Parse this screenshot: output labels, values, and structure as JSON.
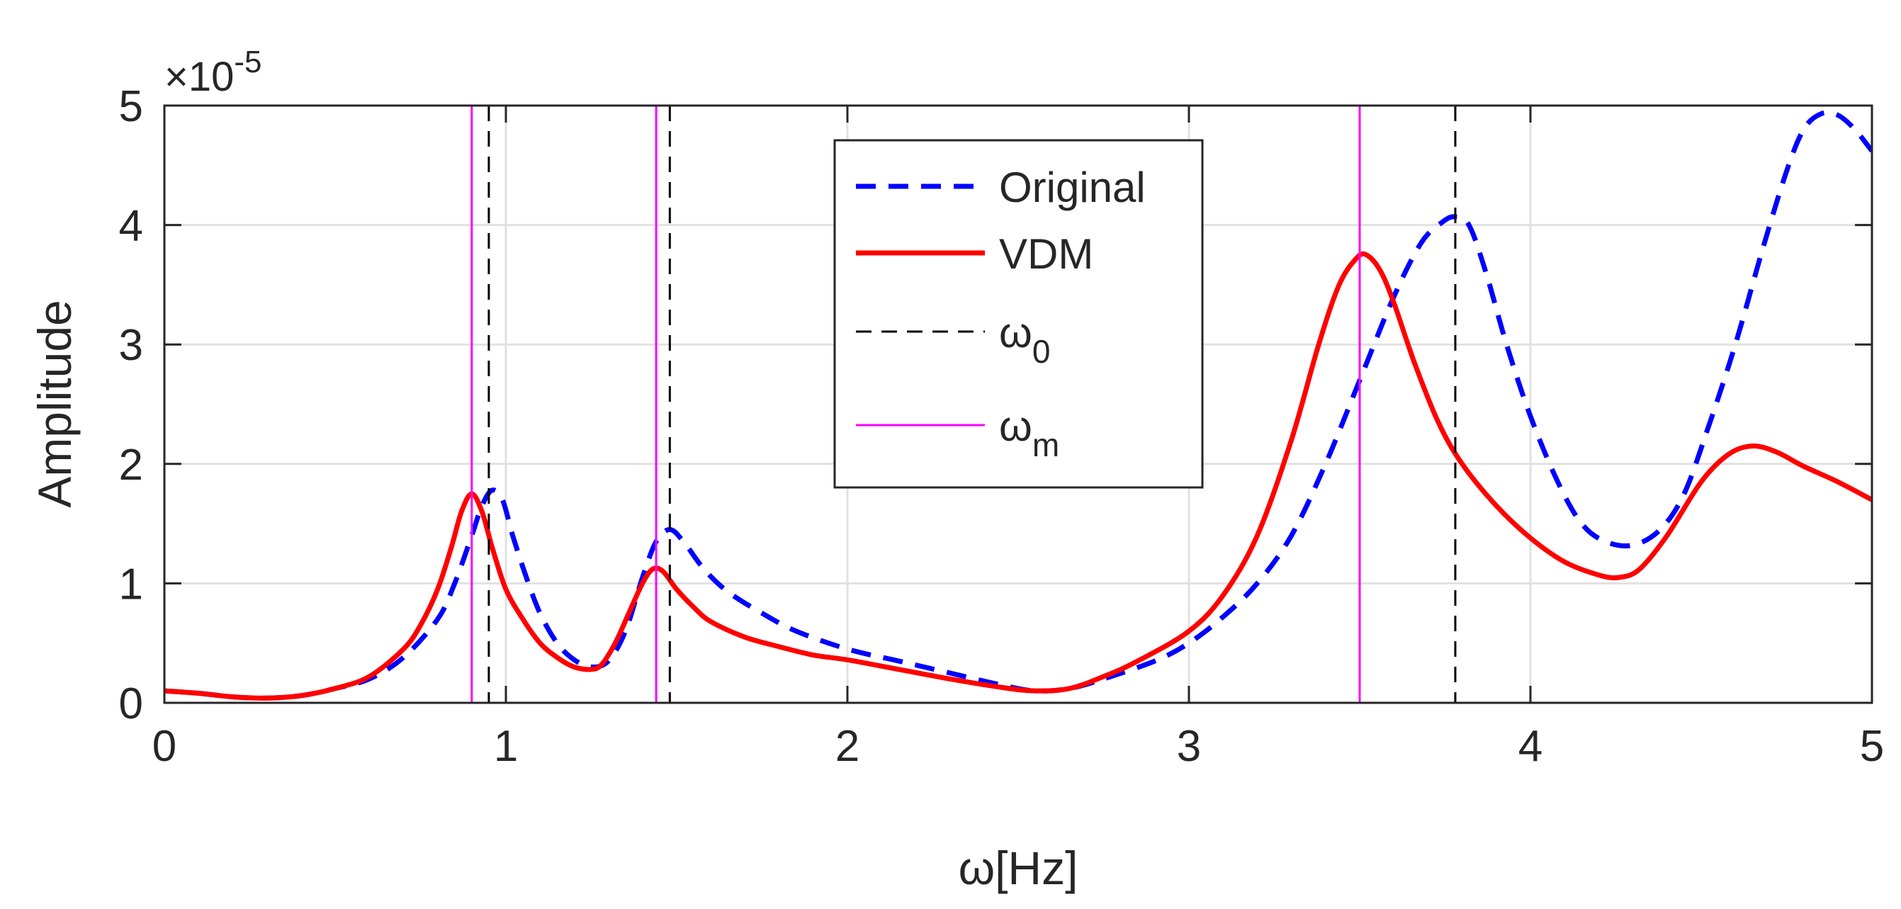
{
  "chart_data": {
    "type": "line",
    "xlabel": "ω[Hz]",
    "ylabel": "Amplitude",
    "exponent_label": {
      "base": "×10",
      "exp": "-5"
    },
    "xlim": [
      0,
      5
    ],
    "ylim": [
      0,
      5
    ],
    "xticks": [
      0,
      1,
      2,
      3,
      4,
      5
    ],
    "xtick_labels": [
      "0",
      "1",
      "2",
      "3",
      "4",
      "5"
    ],
    "yticks": [
      0,
      1,
      2,
      3,
      4,
      5
    ],
    "ytick_labels": [
      "0",
      "1",
      "2",
      "3",
      "4",
      "5"
    ],
    "grid": true,
    "legend": {
      "position": "top-center",
      "entries": [
        {
          "label": "Original",
          "sub": ""
        },
        {
          "label": "VDM",
          "sub": ""
        },
        {
          "label": "ω",
          "sub": "0"
        },
        {
          "label": "ω",
          "sub": "m"
        }
      ]
    },
    "series": [
      {
        "name": "Original",
        "color": "#0000ff",
        "style": "dashed",
        "x": [
          0,
          0.1,
          0.2,
          0.3,
          0.4,
          0.5,
          0.6,
          0.7,
          0.8,
          0.85,
          0.9,
          0.93,
          0.96,
          0.99,
          1.02,
          1.06,
          1.1,
          1.15,
          1.2,
          1.25,
          1.3,
          1.35,
          1.4,
          1.44,
          1.48,
          1.52,
          1.58,
          1.65,
          1.75,
          1.85,
          2.0,
          2.15,
          2.3,
          2.45,
          2.55,
          2.65,
          2.75,
          2.9,
          3.0,
          3.1,
          3.2,
          3.3,
          3.4,
          3.5,
          3.6,
          3.68,
          3.74,
          3.78,
          3.82,
          3.87,
          3.93,
          4.0,
          4.08,
          4.15,
          4.22,
          4.3,
          4.38,
          4.45,
          4.52,
          4.6,
          4.68,
          4.75,
          4.8,
          4.85,
          4.9,
          4.95,
          5.0
        ],
        "values": [
          0.1,
          0.08,
          0.05,
          0.04,
          0.06,
          0.12,
          0.2,
          0.38,
          0.7,
          1.0,
          1.4,
          1.65,
          1.78,
          1.7,
          1.4,
          1.05,
          0.75,
          0.5,
          0.36,
          0.3,
          0.35,
          0.6,
          1.05,
          1.35,
          1.45,
          1.35,
          1.12,
          0.93,
          0.75,
          0.6,
          0.45,
          0.35,
          0.25,
          0.15,
          0.1,
          0.12,
          0.2,
          0.35,
          0.5,
          0.72,
          1.0,
          1.4,
          2.0,
          2.7,
          3.4,
          3.85,
          4.02,
          4.07,
          4.0,
          3.6,
          3.0,
          2.4,
          1.85,
          1.5,
          1.35,
          1.32,
          1.45,
          1.75,
          2.3,
          3.0,
          3.8,
          4.45,
          4.8,
          4.93,
          4.92,
          4.8,
          4.62
        ]
      },
      {
        "name": "VDM",
        "color": "#ff0000",
        "style": "solid",
        "x": [
          0,
          0.1,
          0.2,
          0.3,
          0.4,
          0.5,
          0.6,
          0.7,
          0.75,
          0.8,
          0.84,
          0.87,
          0.9,
          0.93,
          0.96,
          1.0,
          1.05,
          1.1,
          1.15,
          1.2,
          1.25,
          1.28,
          1.32,
          1.36,
          1.4,
          1.43,
          1.46,
          1.5,
          1.55,
          1.6,
          1.7,
          1.8,
          1.9,
          2.0,
          2.15,
          2.3,
          2.45,
          2.55,
          2.65,
          2.75,
          2.85,
          3.0,
          3.1,
          3.2,
          3.3,
          3.38,
          3.44,
          3.49,
          3.52,
          3.56,
          3.6,
          3.66,
          3.73,
          3.8,
          3.9,
          4.0,
          4.1,
          4.2,
          4.26,
          4.32,
          4.4,
          4.5,
          4.58,
          4.65,
          4.72,
          4.8,
          4.9,
          5.0
        ],
        "values": [
          0.1,
          0.08,
          0.05,
          0.04,
          0.06,
          0.12,
          0.22,
          0.45,
          0.65,
          0.95,
          1.3,
          1.6,
          1.75,
          1.6,
          1.3,
          0.95,
          0.7,
          0.5,
          0.38,
          0.3,
          0.28,
          0.32,
          0.5,
          0.75,
          1.0,
          1.12,
          1.1,
          0.95,
          0.8,
          0.68,
          0.55,
          0.47,
          0.4,
          0.36,
          0.28,
          0.2,
          0.13,
          0.1,
          0.12,
          0.22,
          0.35,
          0.6,
          0.9,
          1.4,
          2.2,
          3.0,
          3.5,
          3.72,
          3.75,
          3.62,
          3.35,
          2.85,
          2.35,
          2.0,
          1.65,
          1.38,
          1.18,
          1.07,
          1.05,
          1.12,
          1.4,
          1.85,
          2.08,
          2.15,
          2.1,
          1.98,
          1.85,
          1.7
        ]
      }
    ],
    "vlines": [
      {
        "name": "ω0",
        "color": "#000000",
        "style": "dashed",
        "x": [
          0.95,
          1.48,
          3.78
        ]
      },
      {
        "name": "ωm",
        "color": "#ff00ff",
        "style": "solid",
        "x": [
          0.9,
          1.44,
          3.5
        ]
      }
    ]
  }
}
